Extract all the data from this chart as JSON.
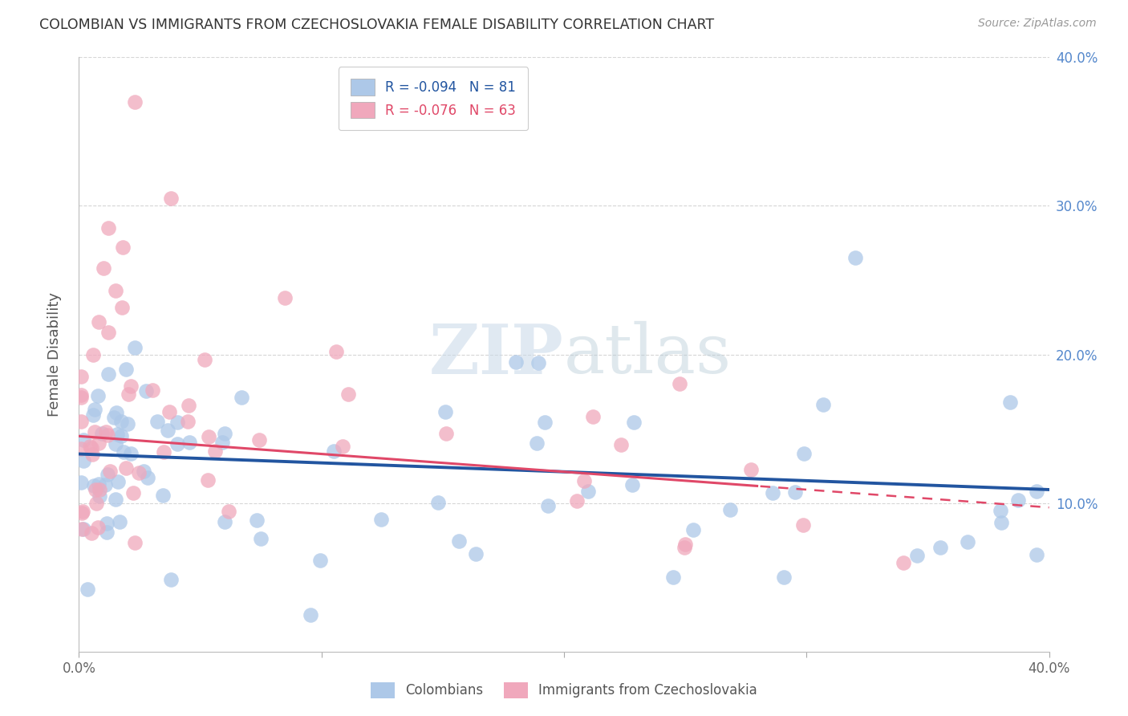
{
  "title": "COLOMBIAN VS IMMIGRANTS FROM CZECHOSLOVAKIA FEMALE DISABILITY CORRELATION CHART",
  "source": "Source: ZipAtlas.com",
  "ylabel": "Female Disability",
  "xlim": [
    0.0,
    0.4
  ],
  "ylim": [
    0.0,
    0.4
  ],
  "colombian_R": -0.094,
  "colombian_N": 81,
  "czech_R": -0.076,
  "czech_N": 63,
  "blue_color": "#adc8e8",
  "pink_color": "#f0a8bc",
  "blue_line_color": "#2255a0",
  "pink_line_color": "#e04868",
  "background_color": "#ffffff",
  "grid_color": "#cccccc",
  "title_color": "#333333",
  "right_axis_color": "#5588cc",
  "watermark_color": "#c8d8e8",
  "blue_intercept": 0.133,
  "blue_slope": -0.06,
  "pink_intercept": 0.145,
  "pink_slope": -0.12
}
